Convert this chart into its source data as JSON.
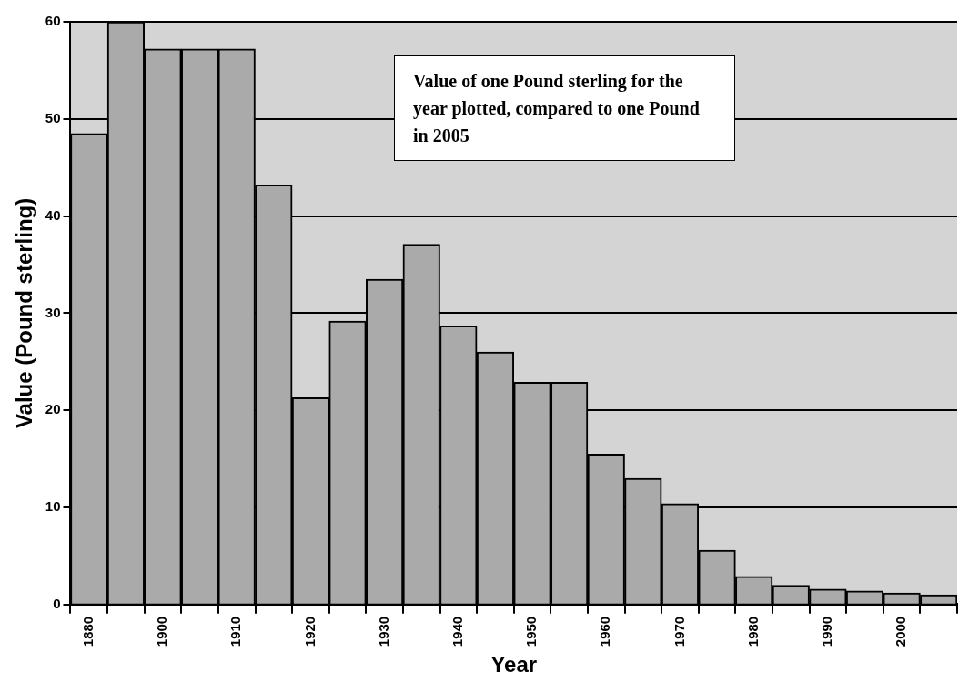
{
  "chart_data": {
    "type": "bar",
    "xlabel": "Year",
    "ylabel": "Value (Pound sterling)",
    "annotations": [
      "Value of one Pound sterling for the year plotted, compared to one Pound in 2005"
    ],
    "categories": [
      "1880",
      null,
      "1900",
      null,
      "1910",
      null,
      "1920",
      null,
      "1930",
      null,
      "1940",
      null,
      "1950",
      null,
      "1960",
      null,
      "1970",
      null,
      "1980",
      null,
      "1990",
      null,
      "2000",
      null
    ],
    "values": [
      48.5,
      60,
      57.2,
      57.2,
      57.2,
      43.2,
      21.3,
      29.2,
      33.5,
      37.1,
      28.7,
      26,
      22.9,
      22.9,
      15.5,
      13,
      10.4,
      5.6,
      2.9,
      2.0,
      1.6,
      1.4,
      1.2,
      1.0
    ],
    "color": "#aaaaaa",
    "ylim": [
      0,
      60
    ],
    "yticks": [
      0,
      10,
      20,
      30,
      40,
      50,
      60
    ],
    "grid": "y",
    "legend": false
  }
}
